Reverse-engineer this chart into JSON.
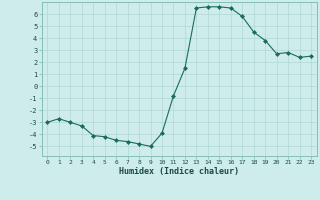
{
  "x": [
    0,
    1,
    2,
    3,
    4,
    5,
    6,
    7,
    8,
    9,
    10,
    11,
    12,
    13,
    14,
    15,
    16,
    17,
    18,
    19,
    20,
    21,
    22,
    23
  ],
  "y": [
    -3.0,
    -2.7,
    -3.0,
    -3.3,
    -4.1,
    -4.2,
    -4.5,
    -4.6,
    -4.8,
    -5.0,
    -3.9,
    -0.8,
    1.5,
    6.5,
    6.6,
    6.6,
    6.5,
    5.8,
    4.5,
    3.8,
    2.7,
    2.8,
    2.4,
    2.5
  ],
  "xlabel": "Humidex (Indice chaleur)",
  "ylim": [
    -5.8,
    7.0
  ],
  "xlim": [
    -0.5,
    23.5
  ],
  "yticks": [
    -5,
    -4,
    -3,
    -2,
    -1,
    0,
    1,
    2,
    3,
    4,
    5,
    6
  ],
  "xticks": [
    0,
    1,
    2,
    3,
    4,
    5,
    6,
    7,
    8,
    9,
    10,
    11,
    12,
    13,
    14,
    15,
    16,
    17,
    18,
    19,
    20,
    21,
    22,
    23
  ],
  "line_color": "#1a6b5e",
  "marker_color": "#1a6b5e",
  "bg_color": "#ceecea",
  "grid_color": "#b0d8d4",
  "spine_color": "#7ab8b0"
}
